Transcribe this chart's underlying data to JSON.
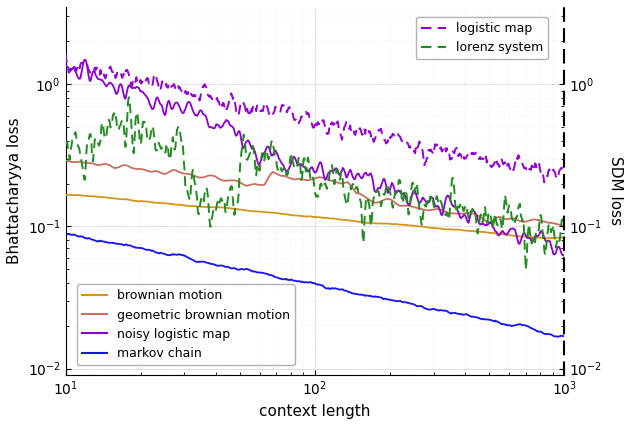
{
  "xlabel": "context length",
  "ylabel_left": "Bhattacharyya loss",
  "ylabel_right": "SDM loss",
  "xlim": [
    10,
    1000
  ],
  "ylim_left": [
    0.009,
    3.5
  ],
  "ylim_right": [
    0.009,
    3.5
  ],
  "background_color": "#ffffff",
  "grid_color": "#bbbbbb",
  "curves": {
    "logistic_map_dashed": {
      "color": "#9400D3",
      "linestyle": "--",
      "linewidth": 1.4,
      "start": 1.4,
      "end": 0.22,
      "noise": 0.18,
      "smooth": 6
    },
    "lorenz_dashed": {
      "color": "#228B22",
      "linestyle": "--",
      "linewidth": 1.4,
      "start": 0.38,
      "end": 0.11,
      "noise": 0.35,
      "smooth": 3
    },
    "brownian": {
      "color": "#D2961E",
      "linestyle": "-",
      "linewidth": 1.3,
      "start": 0.17,
      "end": 0.08,
      "noise": 0.04,
      "smooth": 30
    },
    "geo_brownian": {
      "color": "#C87060",
      "linestyle": "-",
      "linewidth": 1.3,
      "start": 0.3,
      "end": 0.1,
      "noise": 0.1,
      "smooth": 10
    },
    "noisy_logistic": {
      "color": "#8B00CC",
      "linestyle": "-",
      "linewidth": 1.3,
      "start": 1.35,
      "end": 0.08,
      "noise": 0.2,
      "smooth": 5
    },
    "markov": {
      "color": "#1515EE",
      "linestyle": "-",
      "linewidth": 1.3,
      "start": 0.095,
      "end": 0.017,
      "noise": 0.06,
      "smooth": 18
    }
  }
}
